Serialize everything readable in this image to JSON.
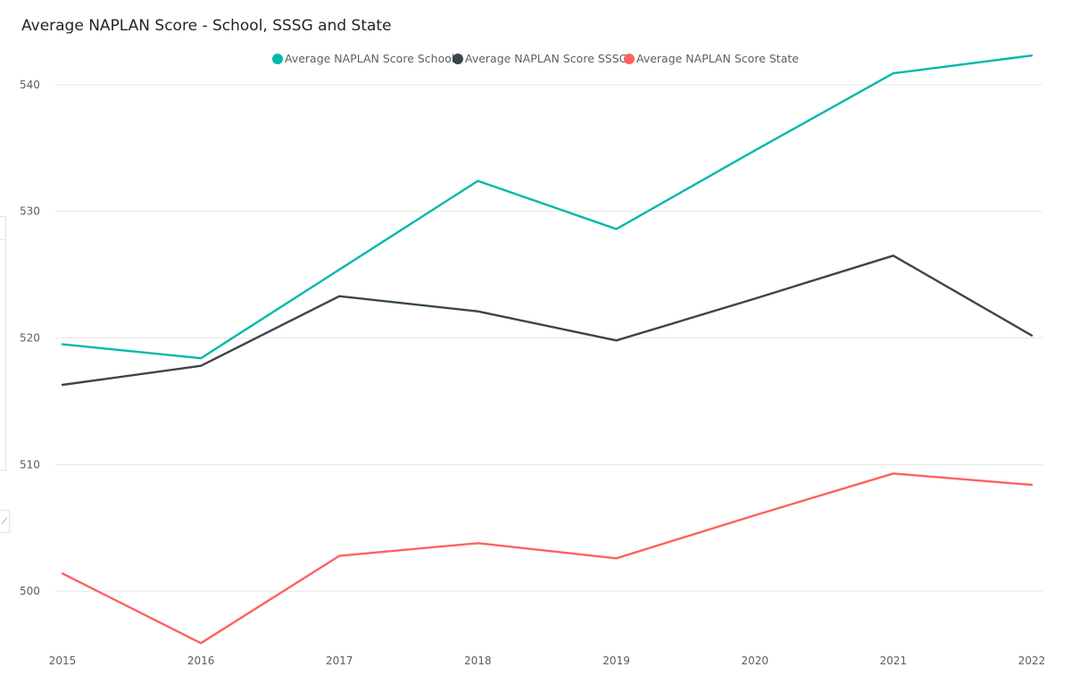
{
  "chart_data": {
    "type": "line",
    "title": "Average NAPLAN Score - School, SSSG and State",
    "xlabel": "",
    "ylabel": "",
    "x": [
      "2015",
      "2016",
      "2017",
      "2018",
      "2019",
      "2020",
      "2021",
      "2022"
    ],
    "ylim": [
      495.5,
      544.5
    ],
    "yticks": [
      500,
      510,
      520,
      530,
      540
    ],
    "grid": true,
    "legend_position": "top-center",
    "series": [
      {
        "name": "Average NAPLAN Score School",
        "color": "#01b8aa",
        "values": [
          519.5,
          518.4,
          525.4,
          532.4,
          528.6,
          534.8,
          540.9,
          542.3
        ]
      },
      {
        "name": "Average NAPLAN Score SSSG",
        "color": "#374649",
        "values": [
          516.3,
          517.8,
          523.3,
          522.1,
          519.8,
          523.1,
          526.5,
          520.2
        ]
      },
      {
        "name": "Average NAPLAN Score State",
        "color": "#fd625e",
        "values": [
          501.4,
          495.9,
          502.8,
          503.8,
          502.6,
          506.0,
          509.3,
          508.4
        ]
      }
    ]
  }
}
